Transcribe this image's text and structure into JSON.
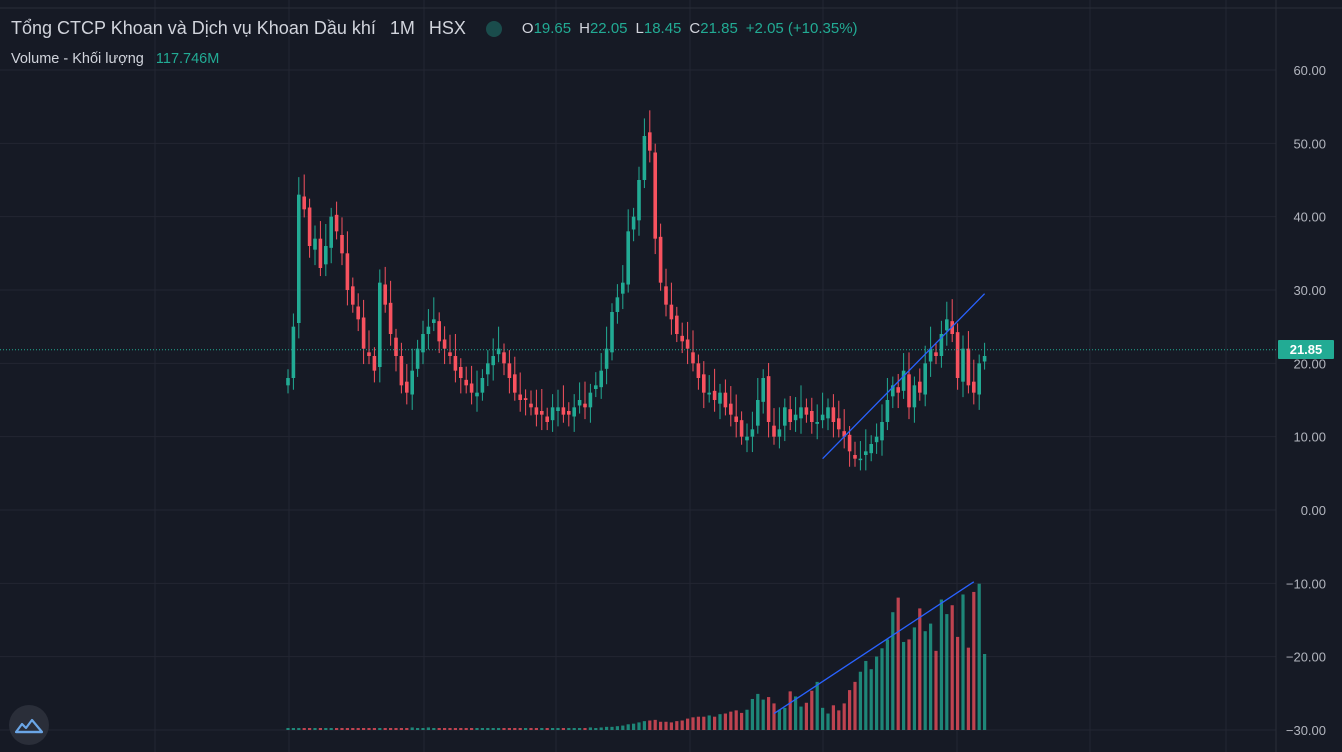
{
  "symbol": {
    "name": "Tổng CTCP Khoan và Dịch vụ Khoan Dầu khí",
    "interval": "1M",
    "exchange": "HSX",
    "status_color": "#22ab94"
  },
  "ohlc": {
    "open_label": "O",
    "open": "19.65",
    "high_label": "H",
    "high": "22.05",
    "low_label": "L",
    "low": "18.45",
    "close_label": "C",
    "close": "21.85",
    "change": "+2.05 (+10.35%)"
  },
  "volume": {
    "label": "Volume - Khối lượng",
    "value": "117.746M"
  },
  "price_tag": "21.85",
  "logo_icon": "tradingview-logo-icon",
  "colors": {
    "background": "#161a25",
    "up": "#22ab94",
    "down": "#f7525f",
    "trendline": "#2962ff",
    "grid": "#232632",
    "axis_text": "#b2b5be"
  },
  "chart_data": {
    "type": "candlestick",
    "title": "",
    "y_axis": {
      "ticks": [
        "60.00",
        "50.00",
        "40.00",
        "30.00",
        "20.00",
        "10.00",
        "0.00",
        "−10.00",
        "−20.00",
        "−30.00"
      ],
      "tick_values": [
        60,
        50,
        40,
        30,
        20,
        10,
        0,
        -10,
        -20,
        -30
      ],
      "range": [
        -33.5,
        70
      ]
    },
    "last_price": 21.85,
    "price_series": {
      "name": "",
      "close": [
        18,
        25,
        43,
        41,
        36,
        37,
        33,
        36,
        40,
        38,
        35,
        30,
        28,
        26,
        22,
        21,
        19,
        31,
        28,
        24,
        21,
        17,
        16,
        19,
        22,
        24,
        25,
        26,
        23,
        22,
        21,
        19,
        18,
        17,
        16,
        16,
        18,
        20,
        21,
        22,
        20,
        18,
        16,
        15,
        15,
        14,
        13,
        13,
        12,
        14,
        14,
        13,
        13,
        14,
        15,
        14,
        16,
        17,
        19,
        22,
        27,
        29,
        31,
        38,
        40,
        45,
        51,
        49,
        37,
        31,
        28,
        26,
        24,
        23,
        22,
        20,
        18,
        16,
        16,
        15,
        16,
        14,
        13,
        12,
        10,
        10,
        11,
        15,
        18,
        12,
        10,
        11,
        14,
        12,
        13,
        14,
        13,
        12,
        12,
        13,
        14,
        12,
        11,
        10,
        8,
        7,
        7,
        8,
        9,
        10,
        12,
        15,
        17,
        16,
        19,
        14,
        17,
        16,
        20,
        22,
        21,
        24,
        26,
        24,
        18,
        22,
        17,
        16,
        20,
        21
      ]
    },
    "volume_series": {
      "name": "",
      "values": [
        0.2,
        0.3,
        0.2,
        0.3,
        0.2,
        0.2,
        0.3,
        0.2,
        0.3,
        0.3,
        0.2,
        0.2,
        0.2,
        0.3,
        0.2,
        0.2,
        0.3,
        0.3,
        0.2,
        0.3,
        0.2,
        0.2,
        0.3,
        0.4,
        0.3,
        0.3,
        0.4,
        0.3,
        0.3,
        0.3,
        0.3,
        0.3,
        0.3,
        0.2,
        0.2,
        0.3,
        0.3,
        0.3,
        0.3,
        0.3,
        0.3,
        0.3,
        0.3,
        0.2,
        0.2,
        0.2,
        0.2,
        0.2,
        0.3,
        0.3,
        0.3,
        0.3,
        0.2,
        0.3,
        0.3,
        0.3,
        0.4,
        0.3,
        0.4,
        0.5,
        0.5,
        0.6,
        0.7,
        0.9,
        1,
        1.2,
        1.4,
        1.5,
        1.6,
        1.3,
        1.3,
        1.2,
        1.4,
        1.5,
        1.8,
        2,
        2.1,
        2.1,
        2.3,
        2.1,
        2.5,
        2.6,
        2.9,
        3.1,
        2.7,
        3.2,
        4.9,
        5.7,
        4.8,
        5.2,
        4.2,
        3.2,
        3.5,
        6.1,
        5.3,
        3.7,
        4.3,
        6.2,
        7.6,
        3.5,
        2.6,
        3.9,
        3.1,
        4.2,
        6.3,
        7.6,
        9.2,
        10.9,
        9.6,
        11.6,
        12.9,
        14.3,
        18.6,
        20.9,
        13.9,
        14.3,
        16.2,
        19.2,
        15.6,
        16.8,
        12.5,
        20.6,
        18.3,
        19.7,
        14.7,
        21.4,
        13,
        21.8,
        23.1,
        12
      ]
    },
    "trendlines": [
      {
        "from": {
          "bar": 99,
          "price": 7
        },
        "to": {
          "bar": 129,
          "price": 29.5
        }
      },
      {
        "from": {
          "bar": 90,
          "vol": 2.6
        },
        "to": {
          "bar": 127,
          "vol": 23.4
        }
      }
    ]
  }
}
